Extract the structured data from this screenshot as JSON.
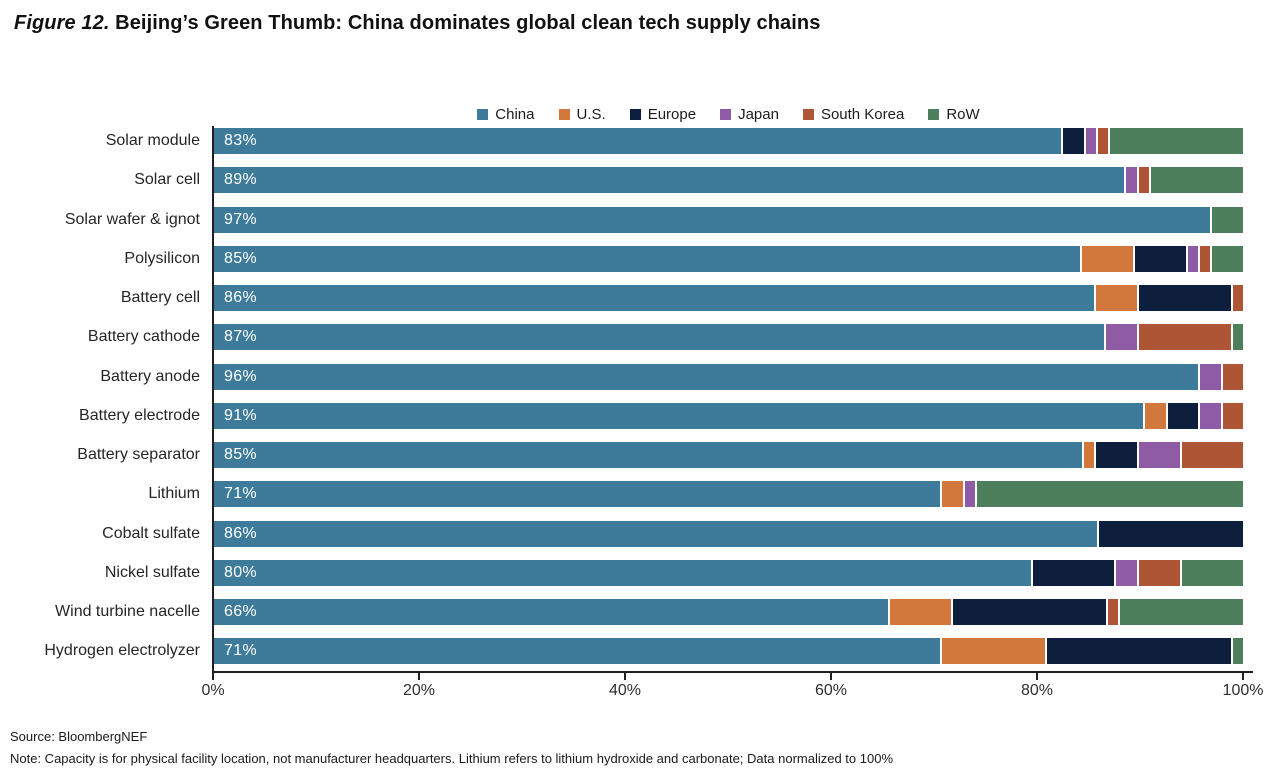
{
  "title": {
    "prefix": "Figure 12.",
    "main": "Beijing’s Green Thumb: China dominates global clean tech supply chains"
  },
  "chart_data": {
    "type": "bar",
    "orientation": "horizontal-stacked",
    "normalized_to": 100,
    "grid": false,
    "legend_position": "top-center",
    "xlim": [
      0,
      100
    ],
    "x_ticks": [
      "0%",
      "20%",
      "40%",
      "60%",
      "80%",
      "100%"
    ],
    "categories": [
      "Solar module",
      "Solar cell",
      "Solar wafer & ignot",
      "Polysilicon",
      "Battery cell",
      "Battery cathode",
      "Battery anode",
      "Battery electrode",
      "Battery separator",
      "Lithium",
      "Cobalt sulfate",
      "Nickel sulfate",
      "Wind turbine nacelle",
      "Hydrogen electrolyzer"
    ],
    "series": [
      {
        "name": "China",
        "color": "#3e7b9a",
        "values": [
          83,
          89,
          97,
          85,
          86,
          87,
          96,
          91,
          85,
          71,
          86,
          80,
          66,
          71
        ]
      },
      {
        "name": "U.S.",
        "color": "#d2783c",
        "values": [
          0,
          0,
          0,
          5,
          4,
          0,
          0,
          2,
          1,
          2,
          0,
          0,
          6,
          10
        ]
      },
      {
        "name": "Europe",
        "color": "#0e1f3e",
        "values": [
          2,
          0,
          0,
          5,
          9,
          0,
          0,
          3,
          4,
          0,
          14,
          8,
          15,
          18
        ]
      },
      {
        "name": "Japan",
        "color": "#8f5ba5",
        "values": [
          1,
          1,
          0,
          1,
          0,
          3,
          2,
          2,
          4,
          1,
          0,
          2,
          0,
          0
        ]
      },
      {
        "name": "South Korea",
        "color": "#ad5535",
        "values": [
          1,
          1,
          0,
          1,
          1,
          9,
          2,
          2,
          6,
          0,
          0,
          4,
          1,
          0
        ]
      },
      {
        "name": "RoW",
        "color": "#4d7f5c",
        "values": [
          13,
          9,
          3,
          3,
          0,
          1,
          0,
          0,
          0,
          26,
          0,
          6,
          12,
          1
        ]
      }
    ],
    "bar_labels": [
      "83%",
      "89%",
      "97%",
      "85%",
      "86%",
      "87%",
      "96%",
      "91%",
      "85%",
      "71%",
      "86%",
      "80%",
      "66%",
      "71%"
    ]
  },
  "footer": {
    "source": "Source: BloombergNEF",
    "note": "Note: Capacity is for physical facility location, not manufacturer headquarters. Lithium refers to lithium hydroxide and carbonate; Data normalized to 100%"
  }
}
